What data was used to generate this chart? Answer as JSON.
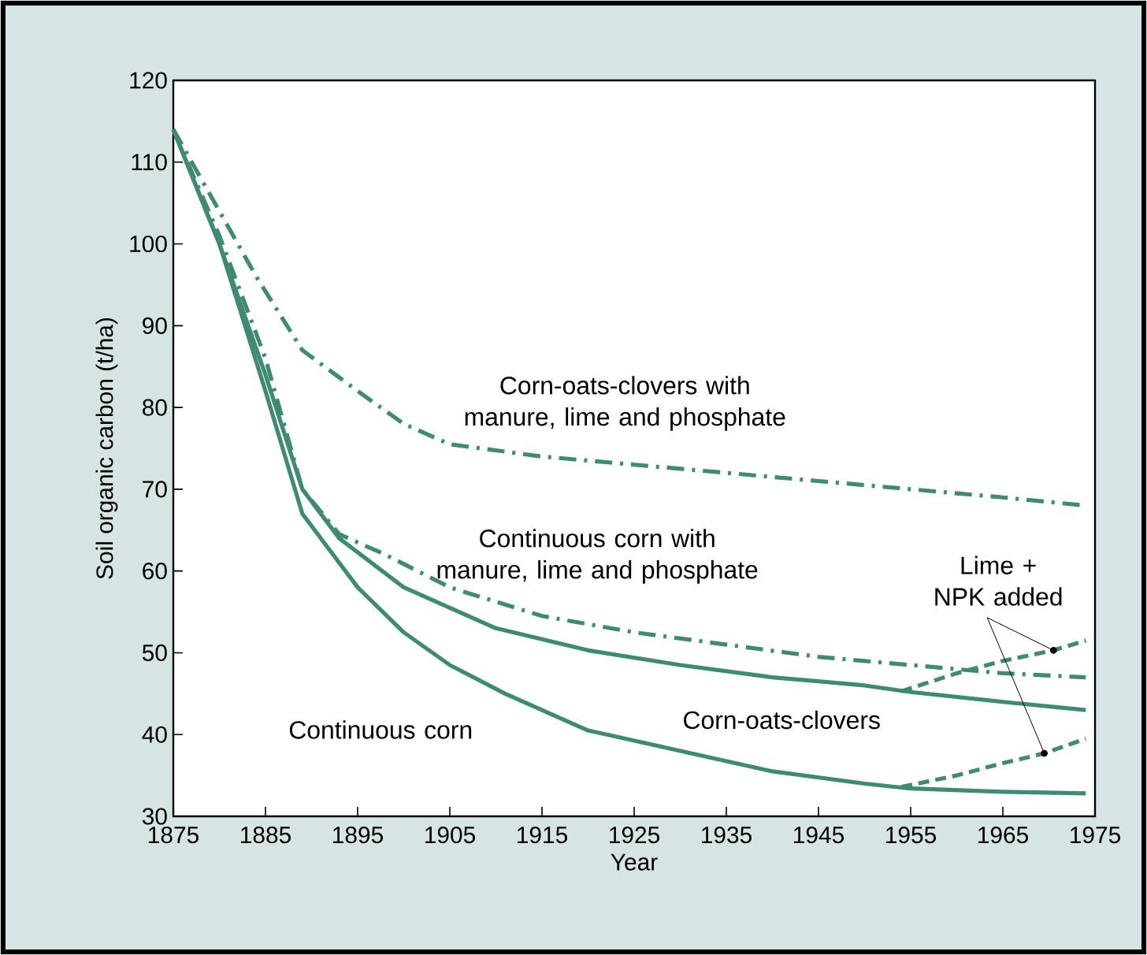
{
  "chart_data": {
    "type": "line",
    "xlabel": "Year",
    "ylabel": "Soil organic carbon (t/ha)",
    "xlim": [
      1875,
      1975
    ],
    "xticks": [
      1875,
      1885,
      1895,
      1905,
      1915,
      1925,
      1935,
      1945,
      1955,
      1965,
      1975
    ],
    "ylim": [
      30,
      120
    ],
    "yticks": [
      30,
      40,
      50,
      60,
      70,
      80,
      90,
      100,
      110,
      120
    ],
    "marker": "none",
    "series": [
      {
        "name": "Corn-oats-clovers with manure, lime and phosphate",
        "color": "#3f8a73",
        "line_style": "dashdot",
        "x": [
          1875,
          1878,
          1884,
          1889,
          1895,
          1900,
          1905,
          1915,
          1925,
          1935,
          1945,
          1955,
          1965,
          1974
        ],
        "values": [
          114,
          108,
          96,
          87,
          82,
          78,
          75.5,
          74,
          73,
          72,
          71,
          70,
          69,
          68
        ]
      },
      {
        "name": "Continuous corn with manure, lime and phosphate",
        "color": "#3f8a73",
        "line_style": "dashdot",
        "x": [
          1875,
          1880,
          1885,
          1889,
          1893,
          1898,
          1905,
          1915,
          1925,
          1935,
          1945,
          1955,
          1965,
          1974
        ],
        "values": [
          114,
          101,
          86,
          70,
          64.5,
          62,
          58,
          54.5,
          52.5,
          51,
          49.5,
          48.5,
          47.5,
          47
        ]
      },
      {
        "name": "Corn-oats-clovers",
        "color": "#3f8a73",
        "line_style": "solid",
        "x": [
          1875,
          1880,
          1885,
          1889,
          1893,
          1900,
          1910,
          1920,
          1930,
          1940,
          1950,
          1955,
          1965,
          1974
        ],
        "values": [
          114,
          100,
          84,
          70,
          64,
          58,
          53,
          50.3,
          48.5,
          47,
          46,
          45.2,
          44,
          43
        ]
      },
      {
        "name": "Continuous corn",
        "color": "#3f8a73",
        "line_style": "solid",
        "x": [
          1875,
          1880,
          1885,
          1889,
          1895,
          1900,
          1905,
          1911,
          1920,
          1930,
          1940,
          1950,
          1955,
          1965,
          1974
        ],
        "values": [
          114,
          100,
          82,
          67,
          58,
          52.5,
          48.5,
          45,
          40.5,
          38,
          35.5,
          34,
          33.4,
          33,
          32.8
        ]
      },
      {
        "color": "#3f8a73",
        "line_style": "dashed",
        "x": [
          1954,
          1960,
          1965,
          1970.5,
          1974
        ],
        "values": [
          45.3,
          47.5,
          49,
          50.3,
          51.5
        ]
      },
      {
        "color": "#3f8a73",
        "line_style": "dashed",
        "x": [
          1954,
          1960,
          1965,
          1969.5,
          1974
        ],
        "values": [
          33.6,
          35,
          36.5,
          37.7,
          39.5
        ]
      }
    ],
    "annotations": [
      {
        "text": "Lime + NPK added",
        "x": 1970.5,
        "y": 50.3
      }
    ]
  }
}
